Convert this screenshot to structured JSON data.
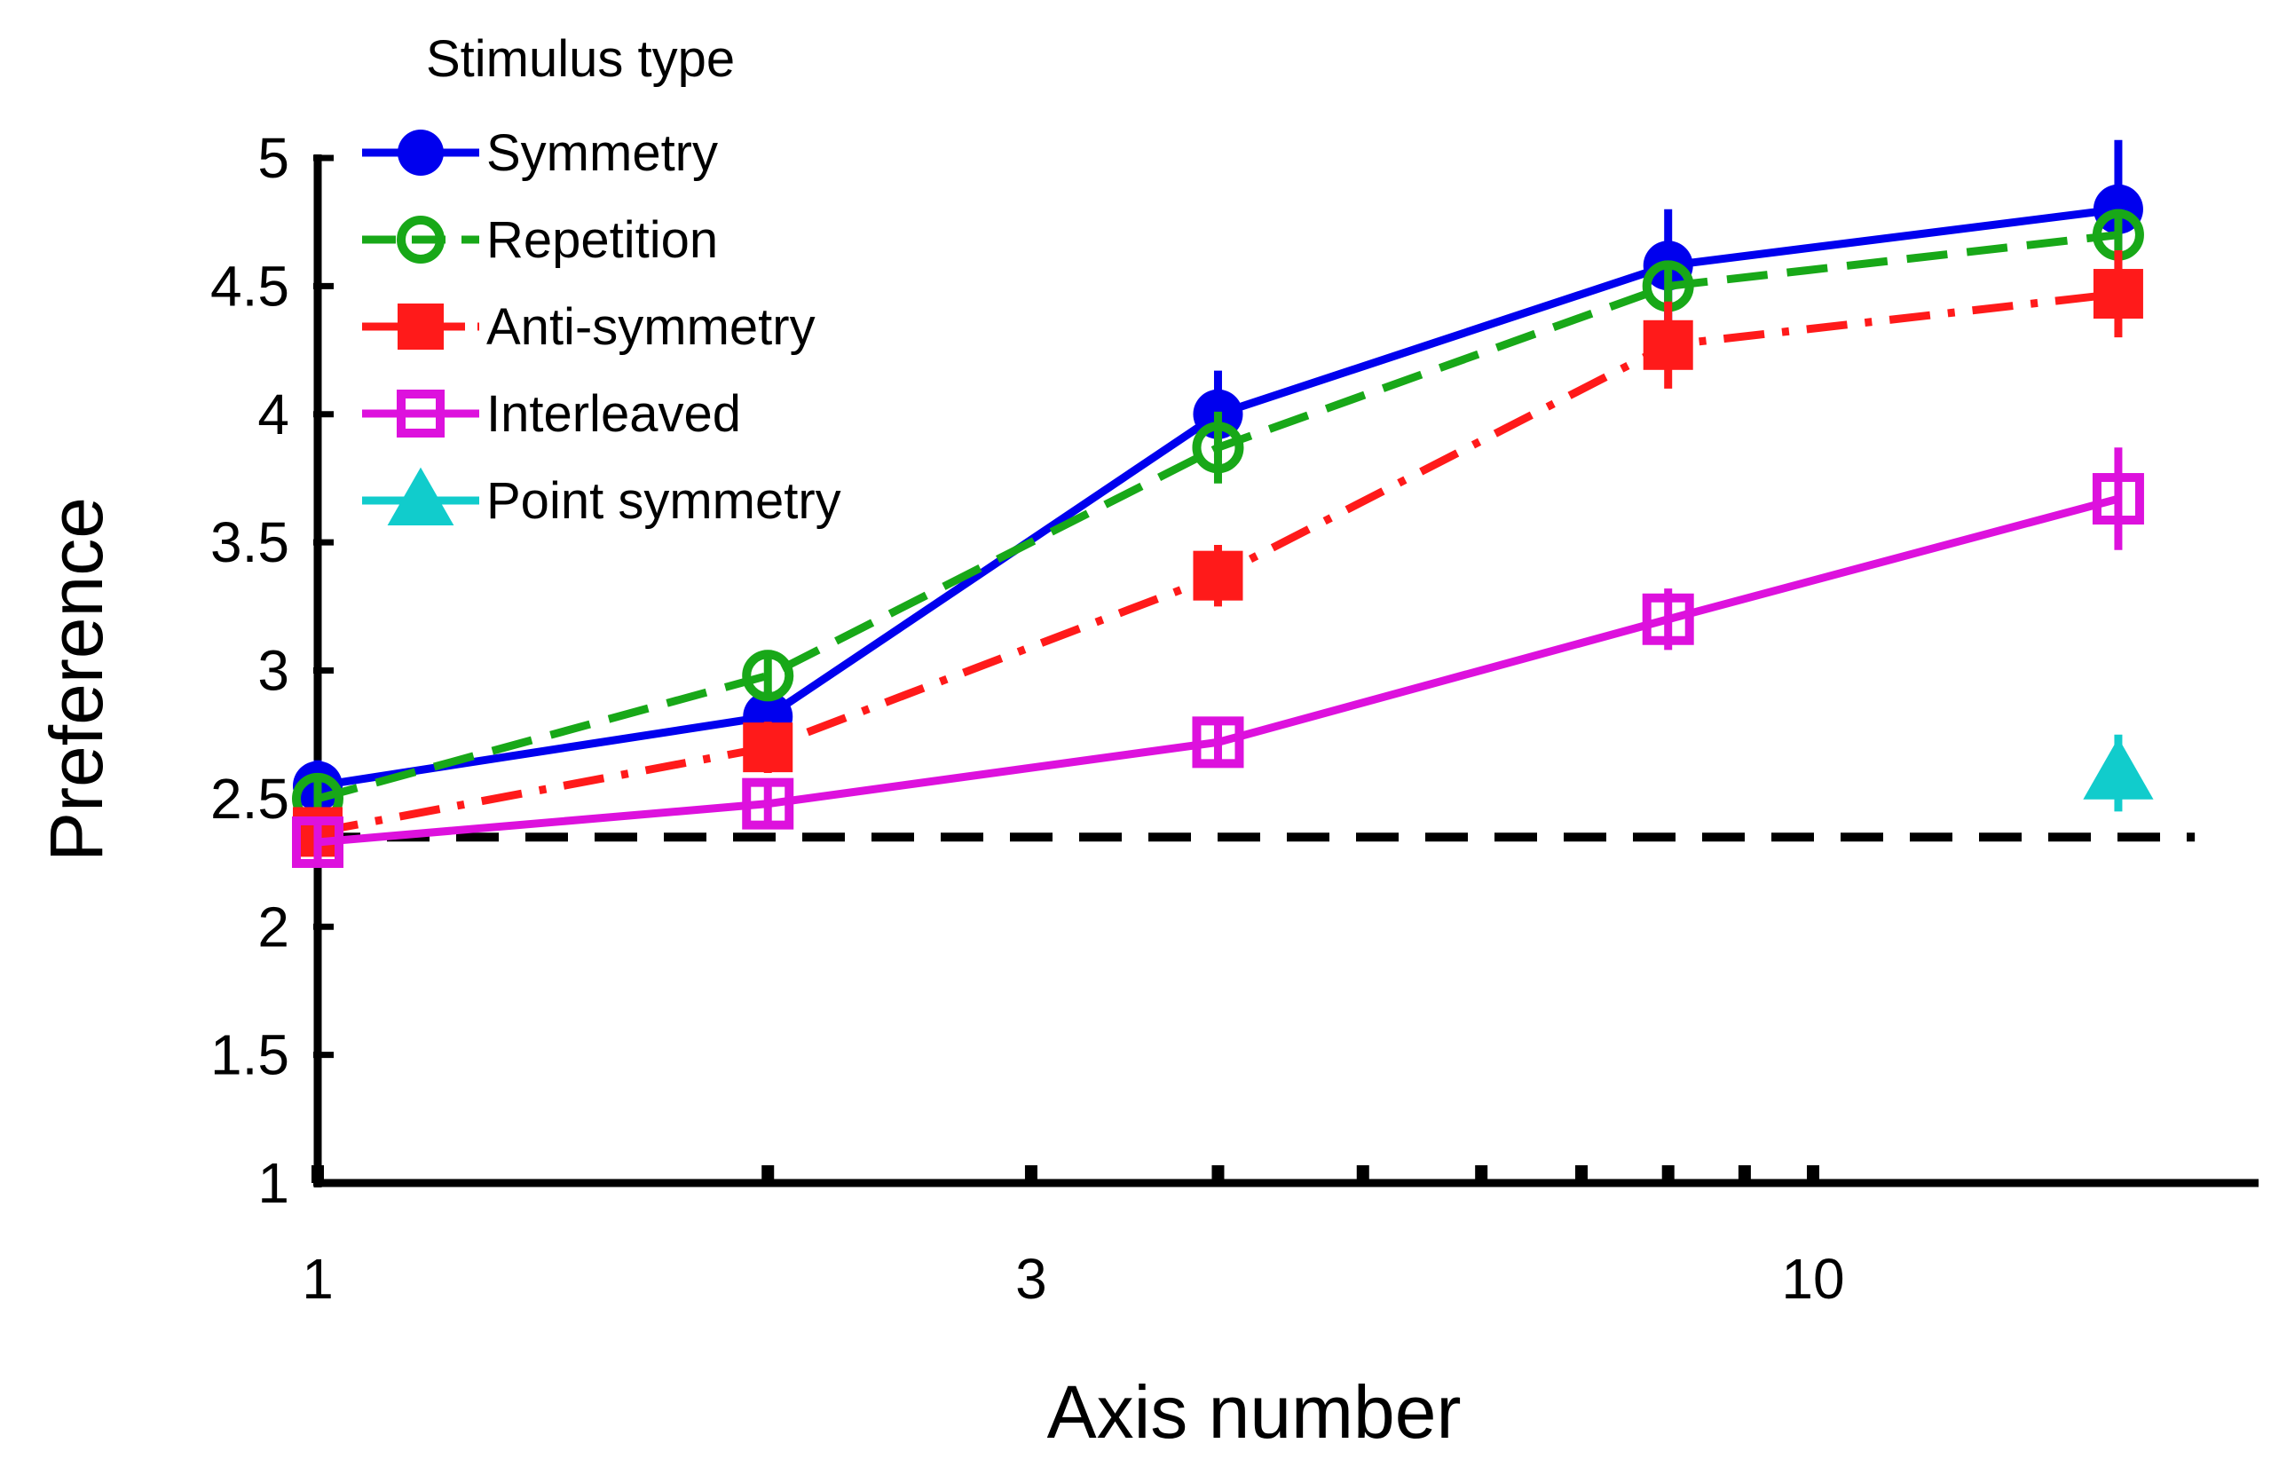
{
  "chart_data": {
    "type": "line",
    "xlabel": "Axis number",
    "ylabel": "Preference",
    "xscale": "log",
    "xlim": [
      1,
      20
    ],
    "ylim": [
      1,
      5
    ],
    "xticks": [
      {
        "value": 1,
        "label": "1"
      },
      {
        "value": 3,
        "label": "3"
      },
      {
        "value": 10,
        "label": "10"
      }
    ],
    "xminor_ticks": [
      2,
      4,
      5,
      6,
      7,
      8,
      9
    ],
    "yticks": [
      {
        "value": 1,
        "label": "1"
      },
      {
        "value": 1.5,
        "label": "1.5"
      },
      {
        "value": 2,
        "label": "2"
      },
      {
        "value": 2.5,
        "label": "2.5"
      },
      {
        "value": 3,
        "label": "3"
      },
      {
        "value": 3.5,
        "label": "3.5"
      },
      {
        "value": 4,
        "label": "4"
      },
      {
        "value": 4.5,
        "label": "4.5"
      },
      {
        "value": 5,
        "label": "5"
      }
    ],
    "reference_line": {
      "y": 2.35,
      "color": "#000000",
      "style": "dashed"
    },
    "legend": {
      "title": "Stimulus type",
      "position": "top-left"
    },
    "series": [
      {
        "name": "Symmetry",
        "color": "#0000ee",
        "marker": "circle-filled",
        "line": "solid",
        "points": [
          {
            "x": 1,
            "y": 2.55,
            "err": 0.1
          },
          {
            "x": 2,
            "y": 2.82,
            "err": 0.1
          },
          {
            "x": 4,
            "y": 4.0,
            "err": 0.17
          },
          {
            "x": 8,
            "y": 4.58,
            "err": 0.22
          },
          {
            "x": 16,
            "y": 4.8,
            "err": 0.27
          }
        ]
      },
      {
        "name": "Repetition",
        "color": "#18a818",
        "marker": "circle-open",
        "line": "dashed",
        "points": [
          {
            "x": 1,
            "y": 2.5,
            "err": 0.08
          },
          {
            "x": 2,
            "y": 2.98,
            "err": 0.1
          },
          {
            "x": 4,
            "y": 3.87,
            "err": 0.14
          },
          {
            "x": 8,
            "y": 4.5,
            "err": 0.1
          },
          {
            "x": 16,
            "y": 4.7,
            "err": 0.1
          }
        ]
      },
      {
        "name": "Anti-symmetry",
        "color": "#ff1a1a",
        "marker": "square-filled",
        "line": "dashdot",
        "points": [
          {
            "x": 1,
            "y": 2.37,
            "err": 0.08
          },
          {
            "x": 2,
            "y": 2.7,
            "err": 0.1
          },
          {
            "x": 4,
            "y": 3.37,
            "err": 0.12
          },
          {
            "x": 8,
            "y": 4.27,
            "err": 0.17
          },
          {
            "x": 16,
            "y": 4.47,
            "err": 0.17
          }
        ]
      },
      {
        "name": "Interleaved",
        "color": "#dd11dd",
        "marker": "square-open",
        "line": "solid",
        "points": [
          {
            "x": 1,
            "y": 2.33,
            "err": 0.08
          },
          {
            "x": 2,
            "y": 2.48,
            "err": 0.08
          },
          {
            "x": 4,
            "y": 2.72,
            "err": 0.07
          },
          {
            "x": 8,
            "y": 3.2,
            "err": 0.12
          },
          {
            "x": 16,
            "y": 3.67,
            "err": 0.2
          }
        ]
      },
      {
        "name": "Point symmetry",
        "color": "#11cccc",
        "marker": "triangle-filled",
        "line": "none",
        "points": [
          {
            "x": 16,
            "y": 2.6,
            "err": 0.15
          }
        ]
      }
    ]
  }
}
